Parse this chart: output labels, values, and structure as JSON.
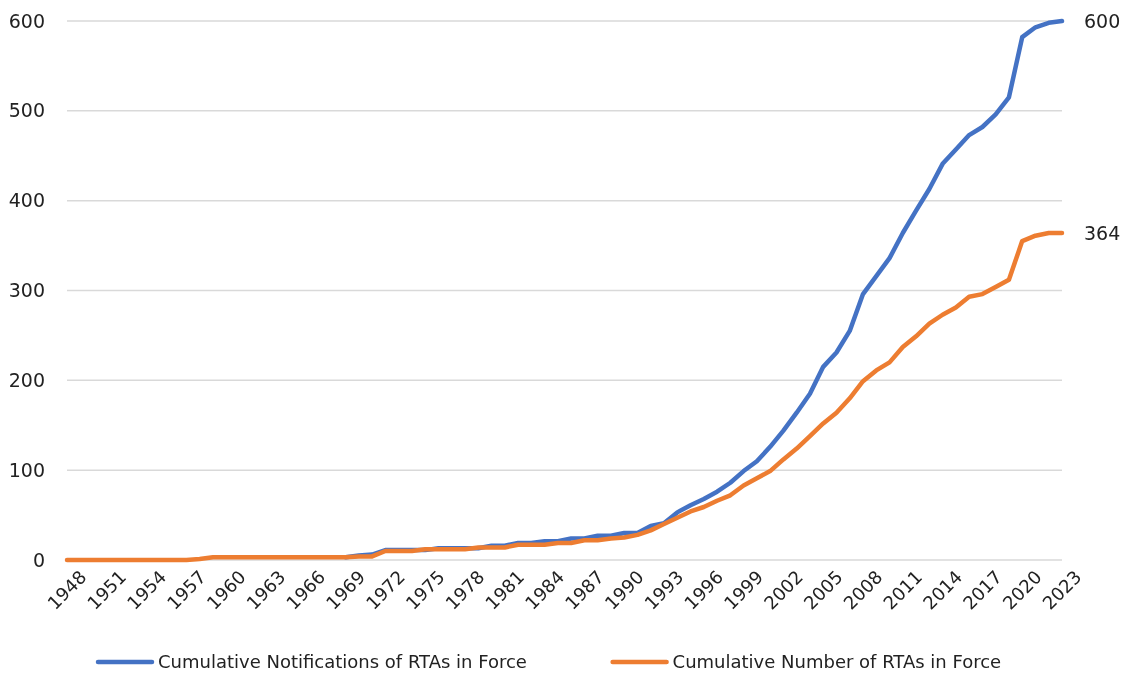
{
  "chart_data": {
    "type": "line",
    "categories": [
      "1948",
      null,
      null,
      "1951",
      null,
      null,
      "1954",
      null,
      null,
      "1957",
      null,
      null,
      "1960",
      null,
      null,
      "1963",
      null,
      null,
      "1966",
      null,
      null,
      "1969",
      null,
      null,
      "1972",
      null,
      null,
      "1975",
      null,
      null,
      "1978",
      null,
      null,
      "1981",
      null,
      null,
      "1984",
      null,
      null,
      "1987",
      null,
      null,
      "1990",
      null,
      null,
      "1993",
      null,
      null,
      "1996",
      null,
      null,
      "1999",
      null,
      null,
      "2002",
      null,
      null,
      "2005",
      null,
      null,
      "2008",
      null,
      null,
      "2011",
      null,
      null,
      "2014",
      null,
      null,
      "2017",
      null,
      null,
      "2020",
      null,
      null,
      "2023"
    ],
    "series": [
      {
        "name": "Cumulative Notifications of RTAs in Force",
        "color": "#4472c4",
        "values": [
          null,
          null,
          null,
          null,
          null,
          null,
          null,
          null,
          null,
          null,
          null,
          null,
          null,
          null,
          null,
          null,
          null,
          null,
          null,
          null,
          null,
          3,
          5,
          6,
          11,
          11,
          11,
          11,
          13,
          13,
          13,
          13,
          16,
          16,
          19,
          19,
          21,
          21,
          24,
          24,
          27,
          27,
          30,
          30,
          38,
          41,
          53,
          61,
          68,
          76,
          86,
          99,
          110,
          126,
          144,
          164,
          185,
          215,
          231,
          255,
          296,
          316,
          336,
          364,
          389,
          413,
          441,
          457,
          473,
          482,
          496,
          515,
          582,
          593,
          598,
          600
        ],
        "value_labels": [
          null,
          null,
          null,
          null,
          null,
          null,
          null,
          null,
          null,
          null,
          null,
          null,
          null,
          null,
          null,
          null,
          null,
          null,
          null,
          null,
          null,
          null,
          null,
          null,
          null,
          null,
          null,
          null,
          null,
          null,
          null,
          null,
          null,
          null,
          null,
          null,
          null,
          null,
          null,
          null,
          null,
          null,
          null,
          null,
          null,
          null,
          null,
          null,
          null,
          null,
          null,
          null,
          null,
          null,
          null,
          null,
          null,
          null,
          null,
          null,
          null,
          null,
          null,
          null,
          null,
          null,
          null,
          null,
          null,
          null,
          null,
          null,
          null,
          null,
          null,
          "600"
        ]
      },
      {
        "name": "Cumulative Number of RTAs in Force",
        "color": "#ed7d31",
        "values": [
          0,
          0,
          0,
          0,
          0,
          0,
          0,
          0,
          0,
          0,
          1,
          3,
          3,
          3,
          3,
          3,
          3,
          3,
          3,
          3,
          3,
          3,
          4,
          4,
          10,
          10,
          10,
          12,
          12,
          12,
          12,
          14,
          14,
          14,
          17,
          17,
          17,
          19,
          19,
          22,
          22,
          24,
          25,
          28,
          33,
          40,
          47,
          54,
          59,
          66,
          72,
          83,
          91,
          99,
          112,
          124,
          138,
          152,
          164,
          180,
          199,
          211,
          220,
          237,
          249,
          263,
          273,
          281,
          293,
          296,
          304,
          312,
          355,
          361,
          364,
          364
        ],
        "value_labels": [
          null,
          null,
          null,
          null,
          null,
          null,
          null,
          null,
          null,
          null,
          null,
          null,
          null,
          null,
          null,
          null,
          null,
          null,
          null,
          null,
          null,
          null,
          null,
          null,
          null,
          null,
          null,
          null,
          null,
          null,
          null,
          null,
          null,
          null,
          null,
          null,
          null,
          null,
          null,
          null,
          null,
          null,
          null,
          null,
          null,
          null,
          null,
          null,
          null,
          null,
          null,
          null,
          null,
          null,
          null,
          null,
          null,
          null,
          null,
          null,
          null,
          null,
          null,
          null,
          null,
          null,
          null,
          null,
          null,
          null,
          null,
          null,
          null,
          null,
          null,
          "364"
        ]
      }
    ],
    "ylim": [
      0,
      600
    ],
    "yticks": [
      0,
      100,
      200,
      300,
      400,
      500,
      600
    ],
    "grid": "y",
    "legend": "bottom",
    "marker": "none",
    "line_style": "solid"
  }
}
